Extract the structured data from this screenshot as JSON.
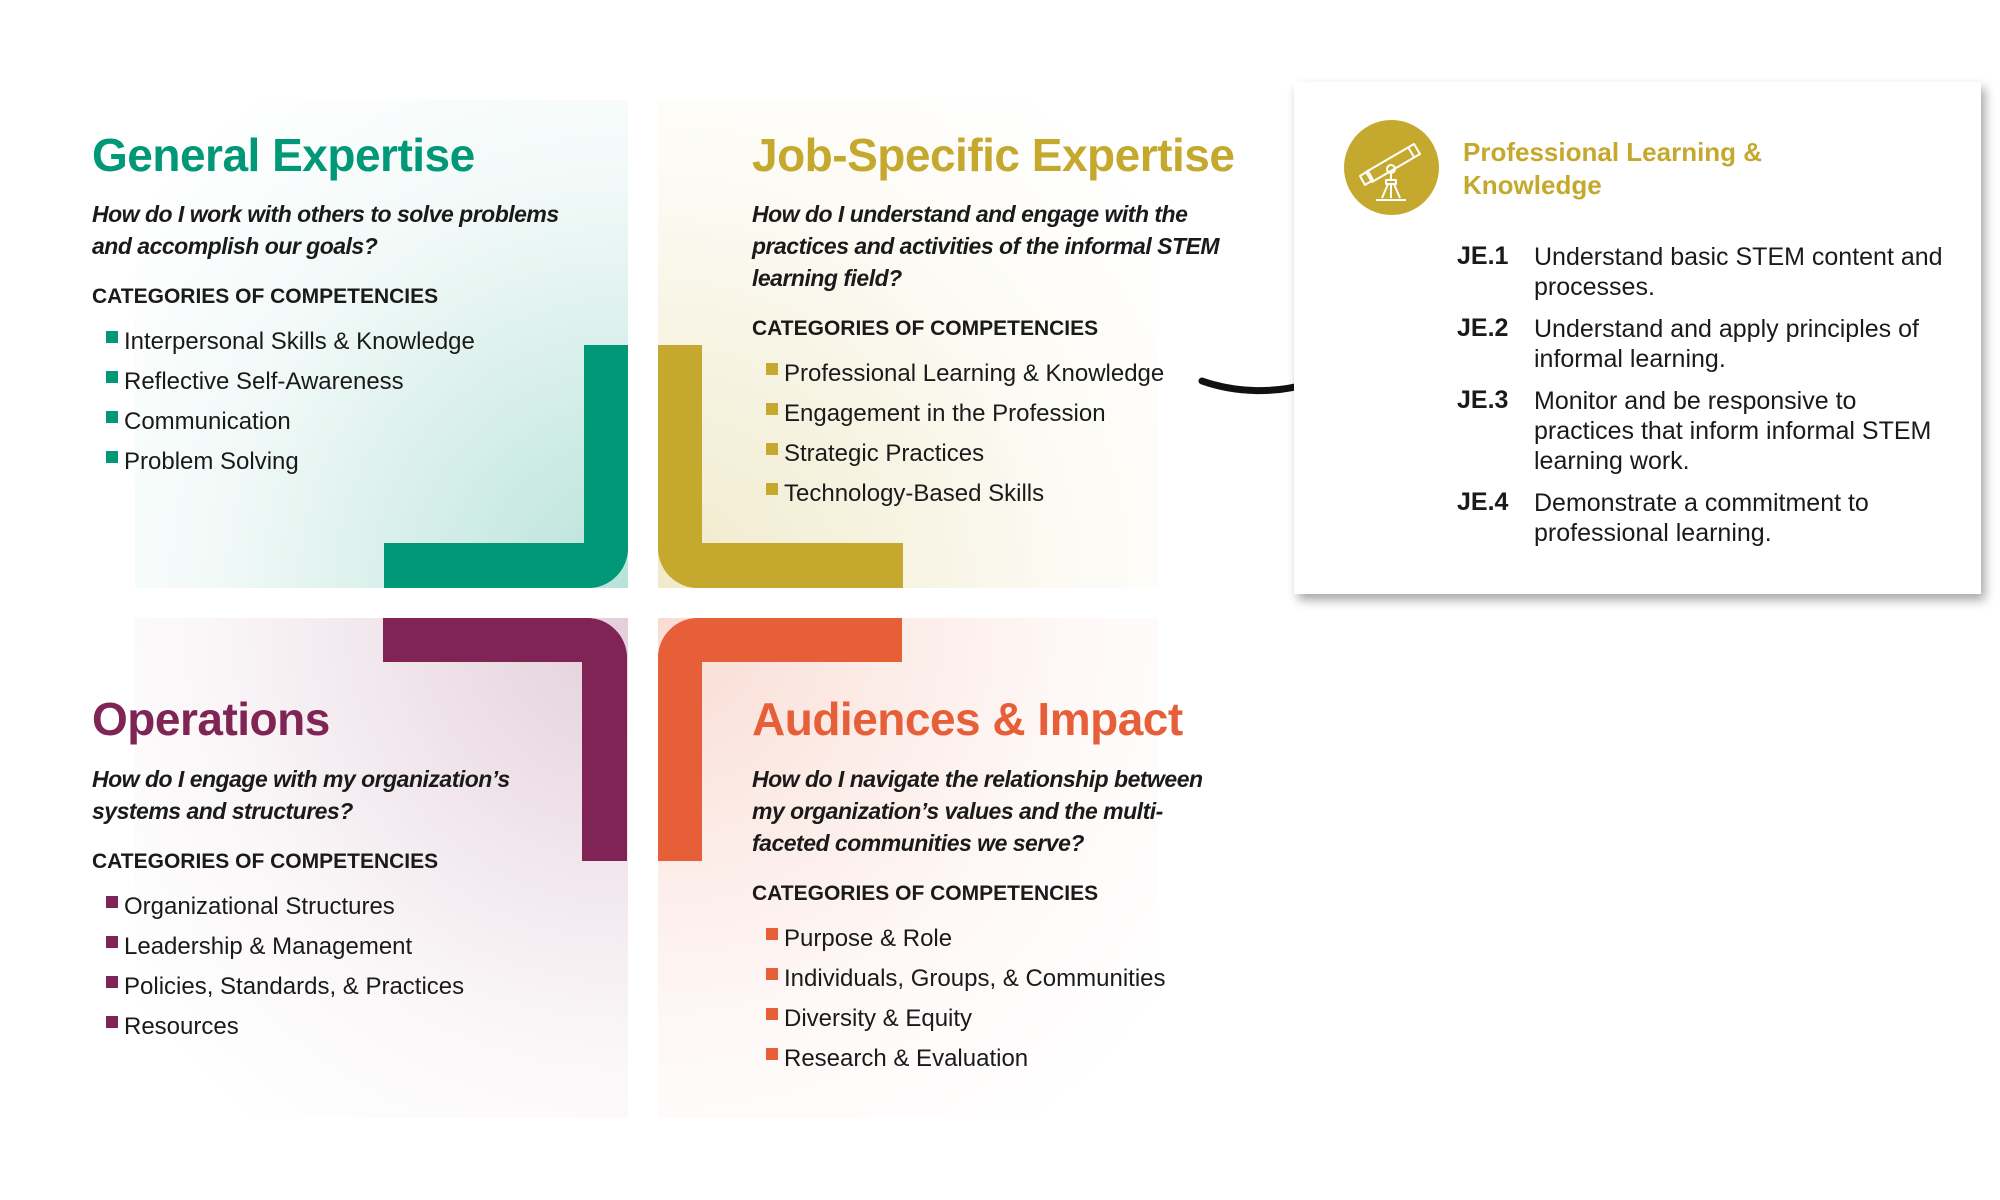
{
  "colors": {
    "green": "#009877",
    "gold": "#c5a92e",
    "purple": "#7f2454",
    "orange": "#e65f38"
  },
  "quadrants": [
    {
      "title": "General Expertise",
      "question": "How do I work with others to solve problems and accomplish our goals?",
      "header": "CATEGORIES OF COMPETENCIES",
      "items": [
        "Interpersonal Skills & Knowledge",
        "Reflective Self-Awareness",
        "Communication",
        "Problem Solving"
      ]
    },
    {
      "title": "Job-Specific Expertise",
      "question": "How do I understand and engage with the practices and activities of the informal STEM learning field?",
      "header": "CATEGORIES OF COMPETENCIES",
      "items": [
        "Professional Learning & Knowledge",
        "Engagement in the Profession",
        "Strategic Practices",
        "Technology-Based Skills"
      ]
    },
    {
      "title": "Operations",
      "question": "How do I engage with my organization’s systems and structures?",
      "header": "CATEGORIES OF COMPETENCIES",
      "items": [
        "Organizational Structures",
        "Leadership & Management",
        "Policies, Standards, & Practices",
        "Resources"
      ]
    },
    {
      "title": "Audiences & Impact",
      "question": "How do I navigate the relationship between my organization’s values and the multi-faceted communities we serve?",
      "header": "CATEGORIES OF COMPETENCIES",
      "items": [
        "Purpose & Role",
        "Individuals, Groups, & Communities",
        "Diversity & Equity",
        "Research & Evaluation"
      ]
    }
  ],
  "detail_card": {
    "icon": "telescope-icon",
    "title": "Professional Learning & Knowledge",
    "competencies": [
      {
        "code": "JE.1",
        "text": "Understand basic STEM content and processes."
      },
      {
        "code": "JE.2",
        "text": "Understand and apply principles of informal learning."
      },
      {
        "code": "JE.3",
        "text": "Monitor and be responsive to practices that inform informal STEM learning work."
      },
      {
        "code": "JE.4",
        "text": "Demonstrate a commitment to professional learning."
      }
    ]
  }
}
